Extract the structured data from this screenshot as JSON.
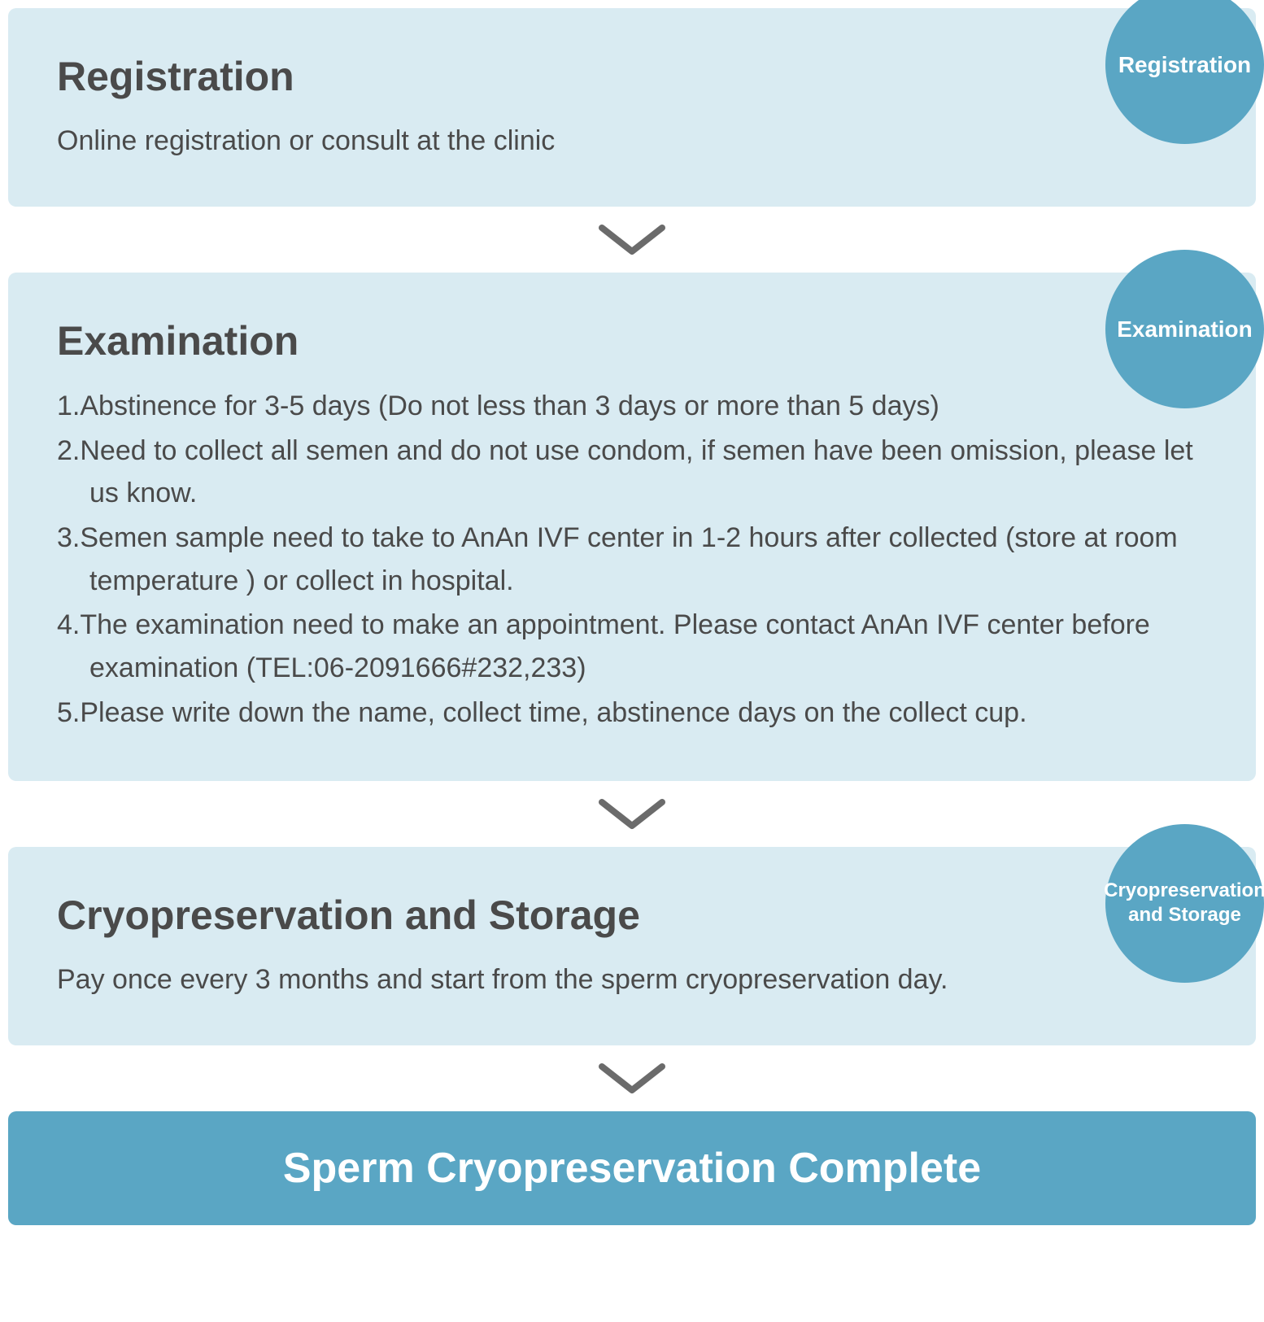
{
  "colors": {
    "box_bg": "#d9ebf2",
    "badge_bg": "#5aa6c4",
    "final_bg": "#5aa6c4",
    "title_color": "#4a4a4a",
    "desc_color": "#4a4a4a",
    "arrow_color": "#6b6b6b",
    "final_text_color": "#ffffff"
  },
  "arrow": {
    "width": 90,
    "height": 45,
    "stroke_width": 8
  },
  "steps": [
    {
      "title": "Registration",
      "badge": "Registration",
      "badge_size": "lg",
      "desc": "Online registration or consult at the clinic",
      "items": []
    },
    {
      "title": "Examination",
      "badge": "Examination",
      "badge_size": "lg",
      "desc": "",
      "items": [
        "1.Abstinence for 3-5 days (Do not less than 3 days or more than 5 days)",
        "2.Need to collect all semen and do not use condom, if semen have been omission, please let us know.",
        "3.Semen sample need to take to AnAn IVF center in 1-2 hours after collected (store at room temperature ) or collect in hospital.",
        "4.The examination need to make an appointment. Please contact AnAn IVF center before examination (TEL:06-2091666#232,233)",
        "5.Please write down the name, collect time, abstinence days on the collect cup."
      ]
    },
    {
      "title": "Cryopreservation and Storage",
      "badge": "Cryopreservation and Storage",
      "badge_size": "sm",
      "desc": "Pay once every 3 months and start from the sperm cryopreservation day.",
      "items": []
    }
  ],
  "final": "Sperm Cryopreservation Complete"
}
